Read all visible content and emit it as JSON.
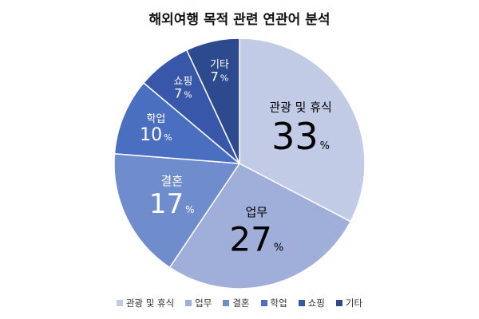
{
  "chart_data": {
    "type": "pie",
    "title": "해외여행 목적 관련 연관어 분석",
    "unit": "%",
    "legend_position": "bottom",
    "slices": [
      {
        "label": "관광 및 휴식",
        "value": 33,
        "color": "#c1cbe6"
      },
      {
        "label": "업무",
        "value": 27,
        "color": "#9fafd9"
      },
      {
        "label": "결혼",
        "value": 17,
        "color": "#6f8ccc"
      },
      {
        "label": "학업",
        "value": 10,
        "color": "#4a6fc0"
      },
      {
        "label": "쇼핑",
        "value": 7,
        "color": "#3957a8"
      },
      {
        "label": "기타",
        "value": 7,
        "color": "#2d4a8e"
      }
    ]
  }
}
